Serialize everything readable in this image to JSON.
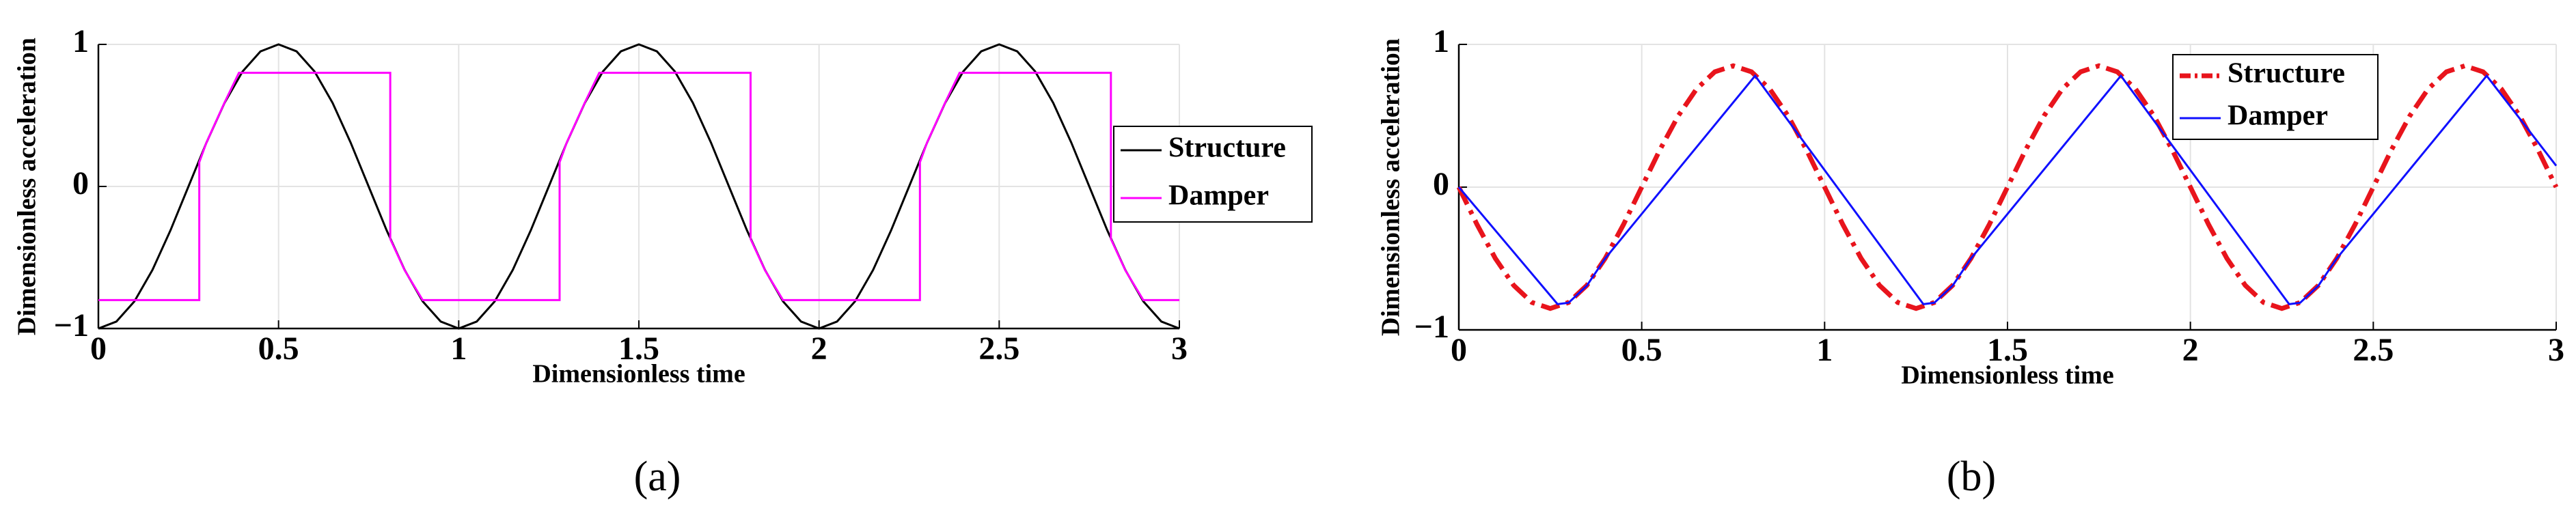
{
  "chart_data": [
    {
      "type": "line",
      "x_label": "Dimensionless time",
      "y_label": "Dimensionless acceleration",
      "caption": "(a)",
      "xlim": [
        0,
        3
      ],
      "ylim": [
        -1,
        1
      ],
      "xticks": [
        0,
        0.5,
        1,
        1.5,
        2,
        2.5,
        3
      ],
      "yticks": [
        {
          "value": -1,
          "label": "−1"
        },
        0,
        1
      ],
      "grid": true,
      "legend": "right",
      "series": [
        {
          "name": "Structure",
          "color": "#000000",
          "line_style": "solid",
          "x": [
            0,
            0.05,
            0.1,
            0.15,
            0.2,
            0.25,
            0.3,
            0.35,
            0.4,
            0.45,
            0.5,
            0.55,
            0.6,
            0.65,
            0.7,
            0.75,
            0.8,
            0.85,
            0.9,
            0.95,
            1,
            1.05,
            1.1,
            1.15,
            1.2,
            1.25,
            1.3,
            1.35,
            1.4,
            1.45,
            1.5,
            1.55,
            1.6,
            1.65,
            1.7,
            1.75,
            1.8,
            1.85,
            1.9,
            1.95,
            2,
            2.05,
            2.1,
            2.15,
            2.2,
            2.25,
            2.3,
            2.35,
            2.4,
            2.45,
            2.5,
            2.55,
            2.6,
            2.65,
            2.7,
            2.75,
            2.8,
            2.85,
            2.9,
            2.95,
            3
          ],
          "values": [
            -1,
            -0.951,
            -0.809,
            -0.588,
            -0.309,
            0,
            0.309,
            0.588,
            0.809,
            0.951,
            1,
            0.951,
            0.809,
            0.588,
            0.309,
            0,
            -0.309,
            -0.588,
            -0.809,
            -0.951,
            -1,
            -0.951,
            -0.809,
            -0.588,
            -0.309,
            0,
            0.309,
            0.588,
            0.809,
            0.951,
            1,
            0.951,
            0.809,
            0.588,
            0.309,
            0,
            -0.309,
            -0.588,
            -0.809,
            -0.951,
            -1,
            -0.951,
            -0.809,
            -0.588,
            -0.309,
            0,
            0.309,
            0.588,
            0.809,
            0.951,
            1,
            0.951,
            0.809,
            0.588,
            0.309,
            0,
            -0.309,
            -0.588,
            -0.809,
            -0.951,
            -1
          ]
        },
        {
          "name": "Damper",
          "color": "#ff00ff",
          "line_style": "solid",
          "x": [
            0,
            0.28,
            0.28,
            0.3,
            0.35,
            0.39,
            0.81,
            0.81,
            0.85,
            0.9,
            1.28,
            1.28,
            1.3,
            1.35,
            1.39,
            1.81,
            1.81,
            1.85,
            1.9,
            2.28,
            2.28,
            2.3,
            2.35,
            2.39,
            2.81,
            2.81,
            2.85,
            2.9,
            3
          ],
          "values": [
            -0.8,
            -0.8,
            0.17,
            0.31,
            0.59,
            0.8,
            0.8,
            -0.37,
            -0.59,
            -0.8,
            -0.8,
            0.17,
            0.31,
            0.59,
            0.8,
            0.8,
            -0.37,
            -0.59,
            -0.8,
            -0.8,
            0.17,
            0.31,
            0.59,
            0.8,
            0.8,
            -0.37,
            -0.59,
            -0.8,
            -0.8
          ]
        }
      ]
    },
    {
      "type": "line",
      "x_label": "Dimensionless time",
      "y_label": "Dimensionless acceleration",
      "caption": "(b)",
      "xlim": [
        0,
        3
      ],
      "ylim": [
        -1,
        1
      ],
      "xticks": [
        0,
        0.5,
        1,
        1.5,
        2,
        2.5,
        3
      ],
      "yticks": [
        {
          "value": -1,
          "label": "−1"
        },
        0,
        1
      ],
      "grid": true,
      "legend": "upper right",
      "series": [
        {
          "name": "Structure",
          "color": "#e8141c",
          "line_style": "dashdot",
          "x": [
            0,
            0.05,
            0.1,
            0.15,
            0.2,
            0.25,
            0.3,
            0.35,
            0.4,
            0.45,
            0.5,
            0.55,
            0.6,
            0.65,
            0.7,
            0.75,
            0.8,
            0.85,
            0.9,
            0.95,
            1,
            1.05,
            1.1,
            1.15,
            1.2,
            1.25,
            1.3,
            1.35,
            1.4,
            1.45,
            1.5,
            1.55,
            1.6,
            1.65,
            1.7,
            1.75,
            1.8,
            1.85,
            1.9,
            1.95,
            2,
            2.05,
            2.1,
            2.15,
            2.2,
            2.25,
            2.3,
            2.35,
            2.4,
            2.45,
            2.5,
            2.55,
            2.6,
            2.65,
            2.7,
            2.75,
            2.8,
            2.85,
            2.9,
            2.95,
            3
          ],
          "values": [
            0,
            -0.263,
            -0.5,
            -0.688,
            -0.808,
            -0.85,
            -0.808,
            -0.688,
            -0.5,
            -0.263,
            0,
            0.263,
            0.5,
            0.688,
            0.808,
            0.85,
            0.808,
            0.688,
            0.5,
            0.263,
            0,
            -0.263,
            -0.5,
            -0.688,
            -0.808,
            -0.85,
            -0.808,
            -0.688,
            -0.5,
            -0.263,
            0,
            0.263,
            0.5,
            0.688,
            0.808,
            0.85,
            0.808,
            0.688,
            0.5,
            0.263,
            0,
            -0.263,
            -0.5,
            -0.688,
            -0.808,
            -0.85,
            -0.808,
            -0.688,
            -0.5,
            -0.263,
            0,
            0.263,
            0.5,
            0.688,
            0.808,
            0.85,
            0.808,
            0.688,
            0.5,
            0.263,
            0
          ]
        },
        {
          "name": "Damper",
          "color": "#1010ff",
          "line_style": "solid",
          "x": [
            0,
            0.27,
            0.3,
            0.35,
            0.4,
            0.81,
            1.27,
            1.3,
            1.35,
            1.4,
            1.81,
            2.27,
            2.3,
            2.35,
            2.4,
            2.81,
            3
          ],
          "values": [
            0,
            -0.82,
            -0.81,
            -0.69,
            -0.5,
            0.78,
            -0.82,
            -0.81,
            -0.69,
            -0.5,
            0.78,
            -0.82,
            -0.81,
            -0.69,
            -0.5,
            0.78,
            0.15
          ]
        }
      ]
    }
  ]
}
